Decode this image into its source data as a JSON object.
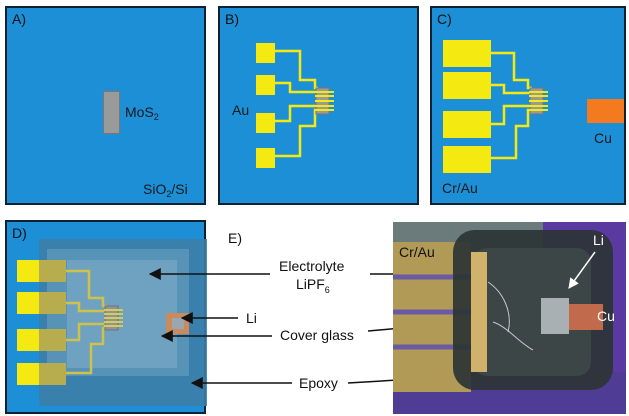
{
  "panels": {
    "a": {
      "label": "A)",
      "mos2_main": "MoS",
      "mos2_sub": "2",
      "sio2_pre": "SiO",
      "sio2_sub": "2",
      "sio2_post": "/Si"
    },
    "b": {
      "label": "B)",
      "au": "Au"
    },
    "c": {
      "label": "C)",
      "cu": "Cu",
      "crau": "Cr/Au"
    },
    "d": {
      "label": "D)",
      "li": "Li"
    },
    "e": {
      "label": "E)"
    }
  },
  "callouts": {
    "electrolyte": "Electrolyte",
    "lipf_main": "LiPF",
    "lipf_sub": "6",
    "cover_glass": "Cover glass",
    "epoxy": "Epoxy"
  },
  "photo": {
    "crau": "Cr/Au",
    "li": "Li",
    "cu": "Cu"
  },
  "colors": {
    "substrate": "#1d8fd6",
    "gold": "#f4ea12",
    "mos2": "#9a9a9a",
    "copper": "#f47a1f",
    "frame": "#0c2233"
  }
}
